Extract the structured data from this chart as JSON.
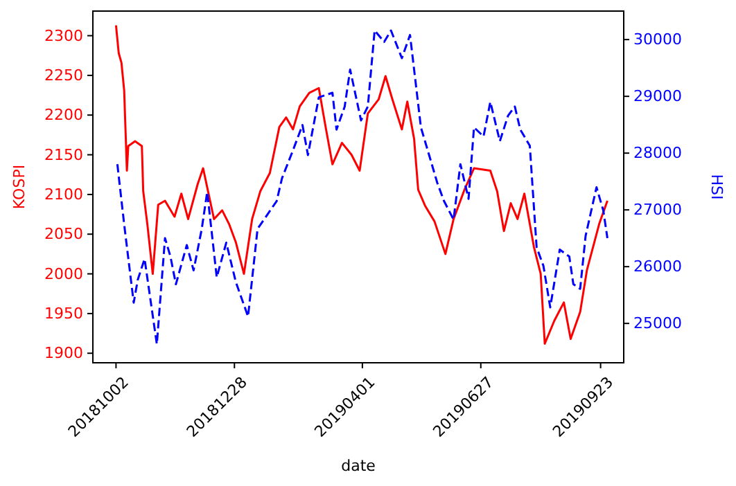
{
  "chart_data": {
    "type": "line",
    "xlabel": "date",
    "ylabel": "KOSPI",
    "y2label": "HSI",
    "xlim": [
      "2018-09-15",
      "2019-10-10"
    ],
    "xticks": [
      {
        "value": "2018-10-02",
        "label": "20181002"
      },
      {
        "value": "2018-12-28",
        "label": "20181228"
      },
      {
        "value": "2019-04-01",
        "label": "20190401"
      },
      {
        "value": "2019-06-27",
        "label": "20190627"
      },
      {
        "value": "2019-09-23",
        "label": "20190923"
      }
    ],
    "ylim": [
      1888,
      2331
    ],
    "yticks": [
      1900,
      1950,
      2000,
      2050,
      2100,
      2150,
      2200,
      2250,
      2300
    ],
    "y2lim": [
      24307,
      30502
    ],
    "y2ticks": [
      25000,
      26000,
      27000,
      28000,
      29000,
      30000
    ],
    "grid": false,
    "series": [
      {
        "color": "#ff0000",
        "line_style": "solid",
        "x": [
          "2018-10-02",
          "2018-10-04",
          "2018-10-06",
          "2018-10-08",
          "2018-10-10",
          "2018-10-11",
          "2018-10-16",
          "2018-10-21",
          "2018-10-22",
          "2018-10-25",
          "2018-10-29",
          "2018-11-02",
          "2018-11-07",
          "2018-11-14",
          "2018-11-19",
          "2018-11-24",
          "2018-12-01",
          "2018-12-05",
          "2018-12-08",
          "2018-12-13",
          "2018-12-19",
          "2018-12-24",
          "2018-12-29",
          "2019-01-04",
          "2019-01-10",
          "2019-01-16",
          "2019-01-23",
          "2019-01-30",
          "2019-02-04",
          "2019-02-09",
          "2019-02-14",
          "2019-02-21",
          "2019-02-28",
          "2019-03-05",
          "2019-03-10",
          "2019-03-17",
          "2019-03-24",
          "2019-03-30",
          "2019-04-05",
          "2019-04-13",
          "2019-04-18",
          "2019-04-23",
          "2019-04-30",
          "2019-05-04",
          "2019-05-09",
          "2019-05-12",
          "2019-05-17",
          "2019-05-24",
          "2019-06-01",
          "2019-06-07",
          "2019-06-15",
          "2019-06-22",
          "2019-07-04",
          "2019-07-09",
          "2019-07-14",
          "2019-07-19",
          "2019-07-24",
          "2019-07-29",
          "2019-08-05",
          "2019-08-10",
          "2019-08-13",
          "2019-08-20",
          "2019-08-27",
          "2019-09-01",
          "2019-09-08",
          "2019-09-13",
          "2019-09-22",
          "2019-09-28"
        ],
        "values": [
          2313,
          2278,
          2266,
          2231,
          2130,
          2161,
          2167,
          2161,
          2104,
          2063,
          2000,
          2087,
          2092,
          2072,
          2101,
          2069,
          2113,
          2133,
          2109,
          2069,
          2080,
          2063,
          2040,
          2000,
          2069,
          2104,
          2127,
          2185,
          2197,
          2182,
          2211,
          2228,
          2234,
          2185,
          2138,
          2165,
          2150,
          2130,
          2202,
          2220,
          2249,
          2220,
          2182,
          2217,
          2170,
          2106,
          2086,
          2066,
          2025,
          2069,
          2106,
          2133,
          2130,
          2104,
          2054,
          2089,
          2069,
          2101,
          2034,
          2000,
          1912,
          1941,
          1964,
          1918,
          1952,
          2005,
          2063,
          2092
        ]
      },
      {
        "color": "#0000ff",
        "line_style": "dashed",
        "axis": "y2",
        "x": [
          "2018-10-03",
          "2018-10-08",
          "2018-10-15",
          "2018-10-18",
          "2018-10-23",
          "2018-11-01",
          "2018-11-07",
          "2018-11-11",
          "2018-11-15",
          "2018-11-23",
          "2018-11-28",
          "2018-12-04",
          "2018-12-08",
          "2018-12-15",
          "2018-12-22",
          "2018-12-29",
          "2019-01-07",
          "2019-01-14",
          "2019-01-21",
          "2019-01-28",
          "2019-02-01",
          "2019-02-09",
          "2019-02-16",
          "2019-02-20",
          "2019-02-28",
          "2019-03-10",
          "2019-03-13",
          "2019-03-19",
          "2019-03-23",
          "2019-03-31",
          "2019-04-05",
          "2019-04-10",
          "2019-04-17",
          "2019-04-22",
          "2019-04-30",
          "2019-05-06",
          "2019-05-10",
          "2019-05-14",
          "2019-05-21",
          "2019-05-26",
          "2019-05-31",
          "2019-06-07",
          "2019-06-12",
          "2019-06-18",
          "2019-06-22",
          "2019-06-29",
          "2019-07-04",
          "2019-07-11",
          "2019-07-17",
          "2019-07-22",
          "2019-07-26",
          "2019-08-02",
          "2019-08-07",
          "2019-08-12",
          "2019-08-17",
          "2019-08-24",
          "2019-08-31",
          "2019-09-03",
          "2019-09-08",
          "2019-09-12",
          "2019-09-20",
          "2019-09-25",
          "2019-09-28"
        ],
        "values": [
          27805,
          26746,
          25366,
          25771,
          26137,
          24634,
          26502,
          26178,
          25690,
          26380,
          25934,
          26666,
          27317,
          25812,
          26422,
          25732,
          25122,
          26666,
          26910,
          27154,
          27561,
          28049,
          28495,
          27966,
          28983,
          29063,
          28415,
          28820,
          29471,
          28576,
          28820,
          30161,
          29959,
          30161,
          29673,
          30080,
          29268,
          28454,
          27886,
          27478,
          27154,
          26829,
          27805,
          27195,
          28454,
          28293,
          28902,
          28210,
          28659,
          28820,
          28415,
          28129,
          26341,
          26015,
          25283,
          26300,
          26178,
          25690,
          25610,
          26544,
          27398,
          26990,
          26502
        ]
      }
    ]
  }
}
